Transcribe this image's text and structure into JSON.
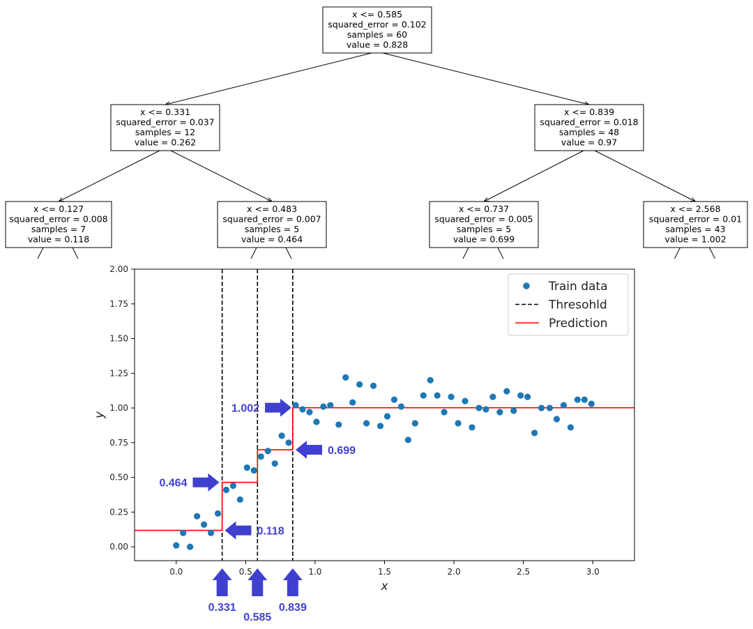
{
  "tree": {
    "nodes": [
      {
        "id": "root",
        "lines": [
          "x <= 0.585",
          "squared_error = 0.102",
          "samples = 60",
          "value = 0.828"
        ]
      },
      {
        "id": "L",
        "lines": [
          "x <= 0.331",
          "squared_error = 0.037",
          "samples = 12",
          "value = 0.262"
        ]
      },
      {
        "id": "R",
        "lines": [
          "x <= 0.839",
          "squared_error = 0.018",
          "samples = 48",
          "value = 0.97"
        ]
      },
      {
        "id": "LL",
        "lines": [
          "x <= 0.127",
          "squared_error = 0.008",
          "samples = 7",
          "value = 0.118"
        ]
      },
      {
        "id": "LR",
        "lines": [
          "x <= 0.483",
          "squared_error = 0.007",
          "samples = 5",
          "value = 0.464"
        ]
      },
      {
        "id": "RL",
        "lines": [
          "x <= 0.737",
          "squared_error = 0.005",
          "samples = 5",
          "value = 0.699"
        ]
      },
      {
        "id": "RR",
        "lines": [
          "x <= 2.568",
          "squared_error = 0.01",
          "samples = 43",
          "value = 1.002"
        ]
      }
    ],
    "edges": [
      [
        "root",
        "L"
      ],
      [
        "root",
        "R"
      ],
      [
        "L",
        "LL"
      ],
      [
        "L",
        "LR"
      ],
      [
        "R",
        "RL"
      ],
      [
        "R",
        "RR"
      ]
    ]
  },
  "chart_data": {
    "type": "scatter",
    "xlabel": "x",
    "ylabel": "y",
    "xlim": [
      -0.3,
      3.3
    ],
    "ylim": [
      -0.1,
      2.0
    ],
    "xticks": [
      0.0,
      0.5,
      1.0,
      1.5,
      2.0,
      2.5,
      3.0
    ],
    "xtick_labels": [
      "0.0",
      "0.5",
      "1.0",
      "1.5",
      "2.0",
      "2.5",
      "3.0"
    ],
    "yticks": [
      0.0,
      0.25,
      0.5,
      0.75,
      1.0,
      1.25,
      1.5,
      1.75,
      2.0
    ],
    "ytick_labels": [
      "0.00",
      "0.25",
      "0.50",
      "0.75",
      "1.00",
      "1.25",
      "1.50",
      "1.75",
      "2.00"
    ],
    "legend": {
      "position": "top-right",
      "entries": [
        {
          "label": "Train data",
          "kind": "marker",
          "color": "#1f77b4"
        },
        {
          "label": "Thresohld",
          "kind": "dashed",
          "color": "#000000"
        },
        {
          "label": "Prediction",
          "kind": "line",
          "color": "#ff0000"
        }
      ]
    },
    "series": [
      {
        "name": "Train data",
        "kind": "scatter",
        "color": "#1f77b4",
        "x": [
          0.0,
          0.05,
          0.1,
          0.15,
          0.2,
          0.25,
          0.3,
          0.36,
          0.41,
          0.46,
          0.51,
          0.56,
          0.61,
          0.66,
          0.71,
          0.76,
          0.81,
          0.86,
          0.91,
          0.96,
          1.01,
          1.06,
          1.11,
          1.17,
          1.22,
          1.27,
          1.32,
          1.37,
          1.42,
          1.47,
          1.52,
          1.57,
          1.62,
          1.67,
          1.72,
          1.78,
          1.83,
          1.88,
          1.93,
          1.98,
          2.03,
          2.08,
          2.13,
          2.18,
          2.23,
          2.28,
          2.33,
          2.38,
          2.43,
          2.48,
          2.53,
          2.58,
          2.63,
          2.69,
          2.74,
          2.79,
          2.84,
          2.89,
          2.94,
          2.99
        ],
        "y": [
          0.01,
          0.1,
          0.0,
          0.22,
          0.16,
          0.1,
          0.24,
          0.41,
          0.44,
          0.34,
          0.57,
          0.55,
          0.65,
          0.69,
          0.6,
          0.8,
          0.75,
          1.02,
          0.99,
          0.97,
          0.9,
          1.01,
          1.02,
          0.88,
          1.22,
          1.04,
          1.17,
          0.89,
          1.16,
          0.87,
          0.94,
          1.06,
          1.01,
          0.77,
          0.89,
          1.09,
          1.2,
          1.09,
          0.97,
          1.08,
          0.89,
          1.05,
          0.86,
          1.0,
          0.99,
          1.08,
          0.97,
          1.12,
          0.98,
          1.09,
          1.08,
          0.82,
          1.0,
          1.0,
          0.92,
          1.02,
          0.86,
          1.06,
          1.06,
          1.03
        ]
      },
      {
        "name": "Thresohld",
        "kind": "vlines",
        "color": "#000000",
        "x": [
          0.331,
          0.585,
          0.839
        ]
      },
      {
        "name": "Prediction",
        "kind": "step",
        "color": "#ff0000",
        "x": [
          -0.3,
          0.331,
          0.331,
          0.585,
          0.585,
          0.839,
          0.839,
          3.3
        ],
        "y": [
          0.118,
          0.118,
          0.464,
          0.464,
          0.699,
          0.699,
          1.002,
          1.002
        ]
      }
    ],
    "annotations": [
      {
        "label": "1.002",
        "dir": "right",
        "tip_x": 0.83,
        "tip_y": 1.002
      },
      {
        "label": "0.699",
        "dir": "left",
        "tip_x": 0.86,
        "tip_y": 0.699
      },
      {
        "label": "0.464",
        "dir": "right",
        "tip_x": 0.31,
        "tip_y": 0.464
      },
      {
        "label": "0.118",
        "dir": "left",
        "tip_x": 0.35,
        "tip_y": 0.118
      },
      {
        "label": "0.331",
        "dir": "up",
        "tip_x": 0.331
      },
      {
        "label": "0.585",
        "dir": "up",
        "tip_x": 0.585
      },
      {
        "label": "0.839",
        "dir": "up",
        "tip_x": 0.839
      }
    ]
  }
}
